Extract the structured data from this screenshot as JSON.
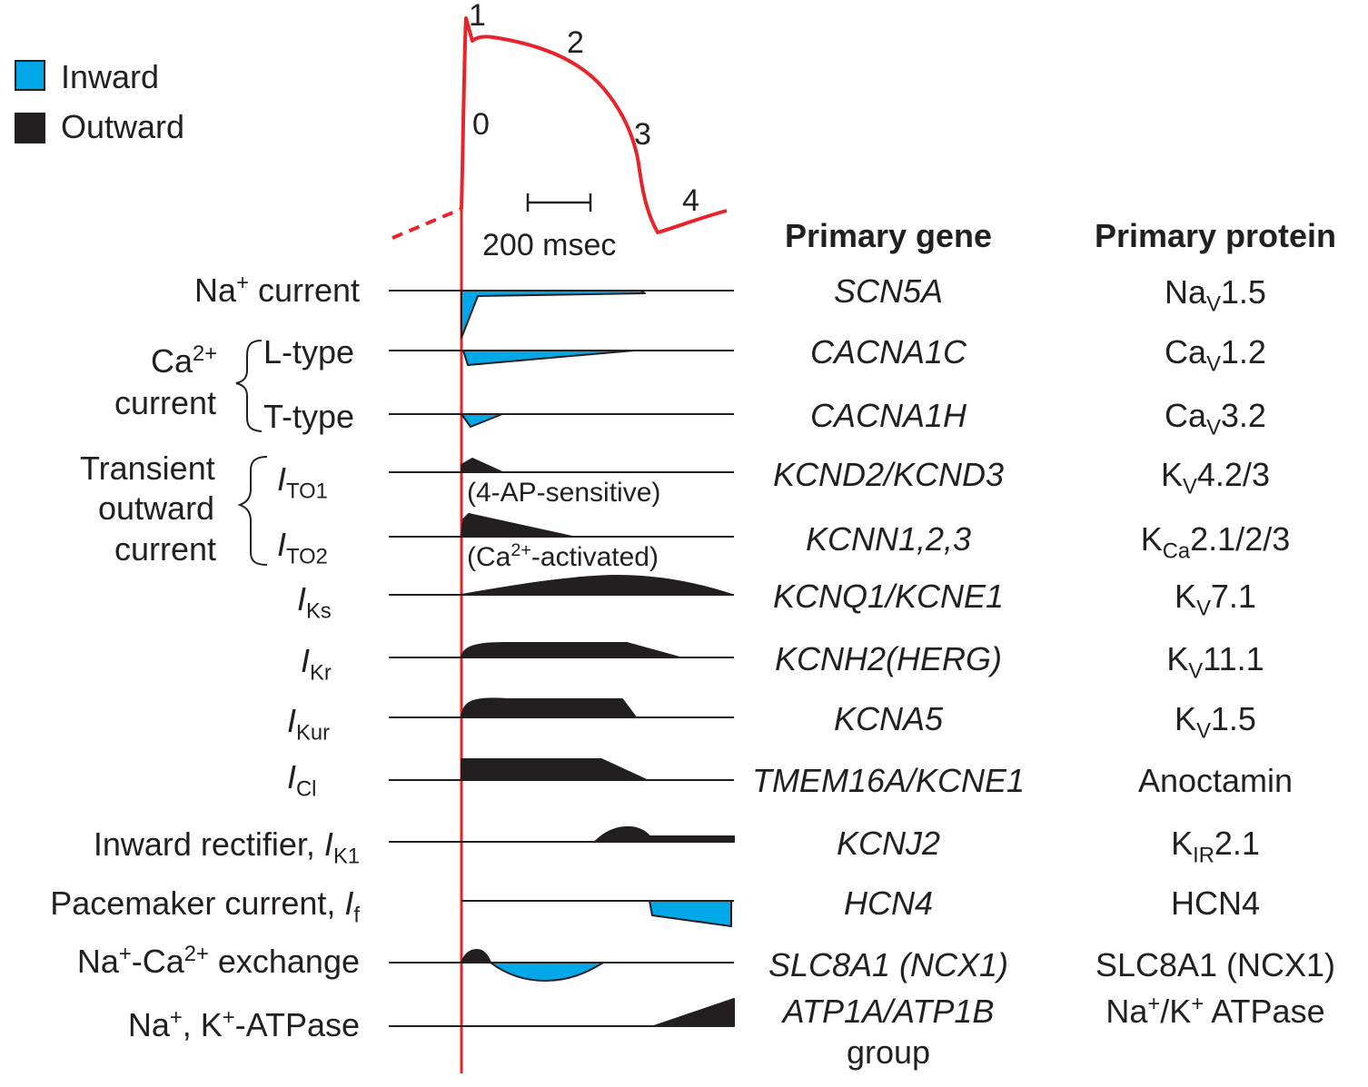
{
  "legend": {
    "inward": {
      "label": "Inward",
      "color": "#00a8e8"
    },
    "outward": {
      "label": "Outward",
      "color": "#231f20"
    }
  },
  "action_potential": {
    "color": "#e8232a",
    "phases": [
      "0",
      "1",
      "2",
      "3",
      "4"
    ],
    "scale_bar": "200 msec"
  },
  "columns": {
    "gene_header": "Primary gene",
    "protein_header": "Primary protein"
  },
  "groups": {
    "ca_current": {
      "line1": "Ca",
      "sup": "2+",
      "line2": "current"
    },
    "transient_outward": {
      "line1": "Transient",
      "line2": "outward",
      "line3": "current"
    }
  },
  "rows": [
    {
      "label": "Na",
      "label_sup": "+",
      "label_rest": " current",
      "gene": "SCN5A",
      "protein": "Na",
      "protein_sub": "V",
      "protein_rest": "1.5",
      "direction": "inward"
    },
    {
      "label": "L-type",
      "gene": "CACNA1C",
      "protein": "Ca",
      "protein_sub": "V",
      "protein_rest": "1.2",
      "direction": "inward"
    },
    {
      "label": "T-type",
      "gene": "CACNA1H",
      "protein": "Ca",
      "protein_sub": "V",
      "protein_rest": "3.2",
      "direction": "inward"
    },
    {
      "label": "I",
      "label_sub": "TO1",
      "note": "(4-AP-sensitive)",
      "gene": "KCND2/KCND3",
      "protein": "K",
      "protein_sub": "V",
      "protein_rest": "4.2/3",
      "direction": "outward"
    },
    {
      "label": "I",
      "label_sub": "TO2",
      "note_pre": "(Ca",
      "note_sup": "2+",
      "note_post": "-activated)",
      "gene": "KCNN1,2,3",
      "protein": "K",
      "protein_sub": "Ca",
      "protein_rest": "2.1/2/3",
      "direction": "outward"
    },
    {
      "label": "I",
      "label_sub": "Ks",
      "gene": "KCNQ1/KCNE1",
      "protein": "K",
      "protein_sub": "V",
      "protein_rest": "7.1",
      "direction": "outward"
    },
    {
      "label": "I",
      "label_sub": "Kr",
      "gene": "KCNH2(HERG)",
      "protein": "K",
      "protein_sub": "V",
      "protein_rest": "11.1",
      "direction": "outward"
    },
    {
      "label": "I",
      "label_sub": "Kur",
      "gene": "KCNA5",
      "protein": "K",
      "protein_sub": "V",
      "protein_rest": "1.5",
      "direction": "outward"
    },
    {
      "label": "I",
      "label_sub": "Cl",
      "gene": "TMEM16A/KCNE1",
      "protein": "Anoctamin",
      "direction": "outward"
    },
    {
      "label": "Inward rectifier, ",
      "label_italic": "I",
      "label_sub": "K1",
      "gene": "KCNJ2",
      "protein": "K",
      "protein_sub": "IR",
      "protein_rest": "2.1",
      "direction": "outward"
    },
    {
      "label": "Pacemaker current, ",
      "label_italic": "I",
      "label_sub": "f",
      "gene": "HCN4",
      "protein": "HCN4",
      "direction": "inward"
    },
    {
      "label": "Na",
      "label_sup": "+",
      "label_mid": "-Ca",
      "label_sup2": "2+",
      "label_rest": " exchange",
      "gene": "SLC8A1 (NCX1)",
      "protein": "SLC8A1 (NCX1)",
      "direction": "mixed"
    },
    {
      "label": "Na",
      "label_sup": "+",
      "label_mid": ", K",
      "label_sup2": "+",
      "label_rest": "-ATPase",
      "gene": "ATP1A/ATP1B",
      "gene_line2": "group",
      "protein": "Na",
      "protein_sup": "+",
      "protein_mid": "/K",
      "protein_sup2": "+",
      "protein_rest": " ATPase",
      "direction": "outward"
    }
  ]
}
